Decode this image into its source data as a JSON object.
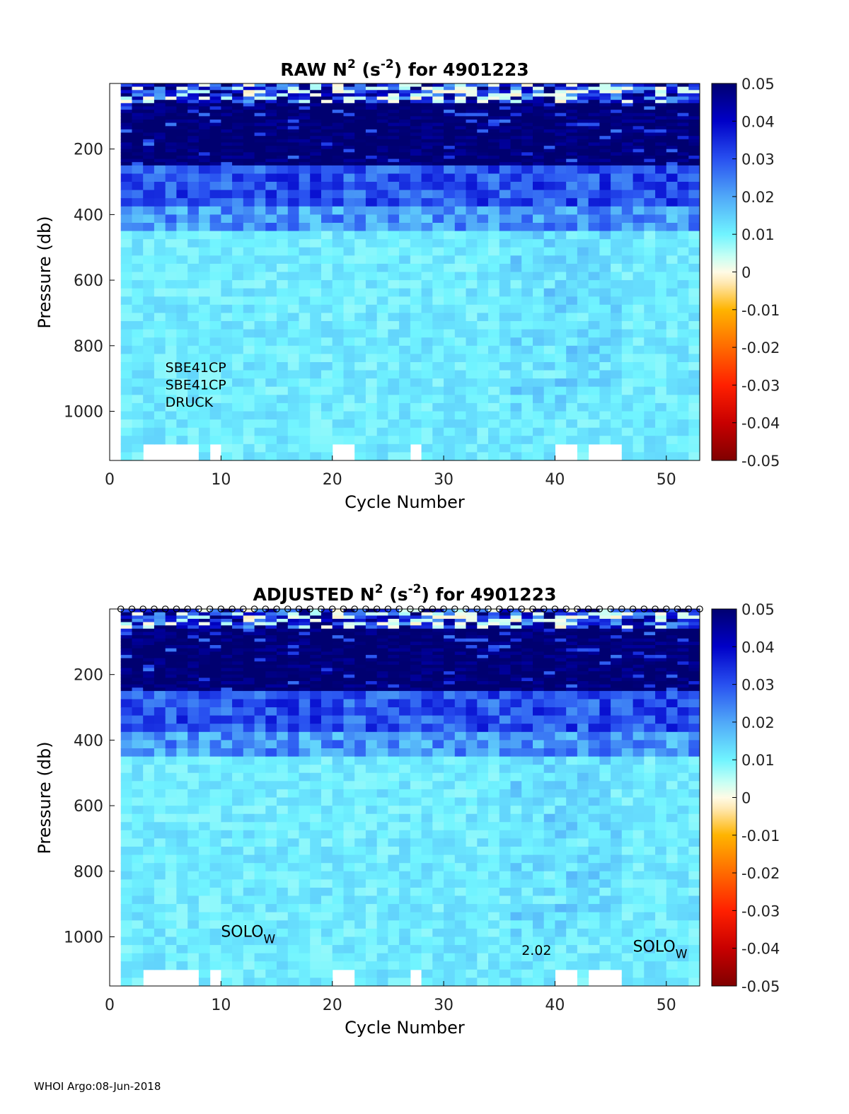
{
  "footer": "WHOI Argo:08-Jun-2018",
  "colormap": {
    "stops": [
      [
        -0.05,
        "#800000"
      ],
      [
        -0.04,
        "#c80000"
      ],
      [
        -0.03,
        "#ff2000"
      ],
      [
        -0.02,
        "#ff6a00"
      ],
      [
        -0.01,
        "#ffb400"
      ],
      [
        -0.003,
        "#ffe8b0"
      ],
      [
        0,
        "#fffbe6"
      ],
      [
        0.004,
        "#c8fff4"
      ],
      [
        0.01,
        "#70f4ff"
      ],
      [
        0.02,
        "#50a8f8"
      ],
      [
        0.03,
        "#2850f0"
      ],
      [
        0.04,
        "#0000c8"
      ],
      [
        0.05,
        "#000070"
      ]
    ]
  },
  "chart_data": [
    {
      "type": "heatmap",
      "title": {
        "pre": "RAW N",
        "sup1": "2",
        "mid": " (s",
        "sup2": "-2",
        "post": ") for 4901223"
      },
      "xlabel": "Cycle Number",
      "ylabel": "Pressure (db)",
      "xlim": [
        0,
        53
      ],
      "ylim": [
        1150,
        0
      ],
      "xticks": [
        0,
        10,
        20,
        30,
        40,
        50
      ],
      "yticks": [
        200,
        400,
        600,
        800,
        1000
      ],
      "colorbar": {
        "clim": [
          -0.05,
          0.05
        ],
        "ticks": [
          "0.05",
          "0.04",
          "0.03",
          "0.02",
          "0.01",
          "0",
          "-0.01",
          "-0.02",
          "-0.03",
          "-0.04",
          "-0.05"
        ]
      },
      "layers": [
        {
          "p_top": 0,
          "p_bot": 60,
          "base": 0.03
        },
        {
          "p_top": 60,
          "p_bot": 250,
          "base": 0.05
        },
        {
          "p_top": 250,
          "p_bot": 370,
          "base": 0.03
        },
        {
          "p_top": 370,
          "p_bot": 450,
          "base": 0.022
        },
        {
          "p_top": 450,
          "p_bot": 1150,
          "base": 0.011
        }
      ],
      "gaps": [
        [
          2,
          7
        ],
        [
          8,
          9
        ],
        [
          19,
          21
        ],
        [
          26,
          27
        ],
        [
          39,
          41
        ],
        [
          42,
          45
        ]
      ],
      "markers": false,
      "annotations": [
        {
          "text": "SBE41CP",
          "x": 5,
          "p": 865
        },
        {
          "text": "SBE41CP",
          "x": 5,
          "p": 918
        },
        {
          "text": "DRUCK",
          "x": 5,
          "p": 971
        }
      ],
      "subtext": []
    },
    {
      "type": "heatmap",
      "title": {
        "pre": "ADJUSTED N",
        "sup1": "2",
        "mid": " (s",
        "sup2": "-2",
        "post": ") for 4901223"
      },
      "xlabel": "Cycle Number",
      "ylabel": "Pressure (db)",
      "xlim": [
        0,
        53
      ],
      "ylim": [
        1150,
        0
      ],
      "xticks": [
        0,
        10,
        20,
        30,
        40,
        50
      ],
      "yticks": [
        200,
        400,
        600,
        800,
        1000
      ],
      "colorbar": {
        "clim": [
          -0.05,
          0.05
        ],
        "ticks": [
          "0.05",
          "0.04",
          "0.03",
          "0.02",
          "0.01",
          "0",
          "-0.01",
          "-0.02",
          "-0.03",
          "-0.04",
          "-0.05"
        ]
      },
      "layers": [
        {
          "p_top": 0,
          "p_bot": 60,
          "base": 0.03
        },
        {
          "p_top": 60,
          "p_bot": 250,
          "base": 0.05
        },
        {
          "p_top": 250,
          "p_bot": 370,
          "base": 0.03
        },
        {
          "p_top": 370,
          "p_bot": 450,
          "base": 0.022
        },
        {
          "p_top": 450,
          "p_bot": 1150,
          "base": 0.011
        }
      ],
      "gaps": [
        [
          2,
          7
        ],
        [
          8,
          9
        ],
        [
          19,
          21
        ],
        [
          26,
          27
        ],
        [
          39,
          41
        ],
        [
          42,
          45
        ]
      ],
      "markers": true,
      "annotations": [
        {
          "text": "2.02",
          "x": 37,
          "p": 1040
        }
      ],
      "subtext": [
        {
          "main": "SOLO",
          "sub": "W",
          "x": 10,
          "p": 985
        },
        {
          "main": "SOLO",
          "sub": "W",
          "x": 47,
          "p": 1030
        }
      ]
    }
  ]
}
